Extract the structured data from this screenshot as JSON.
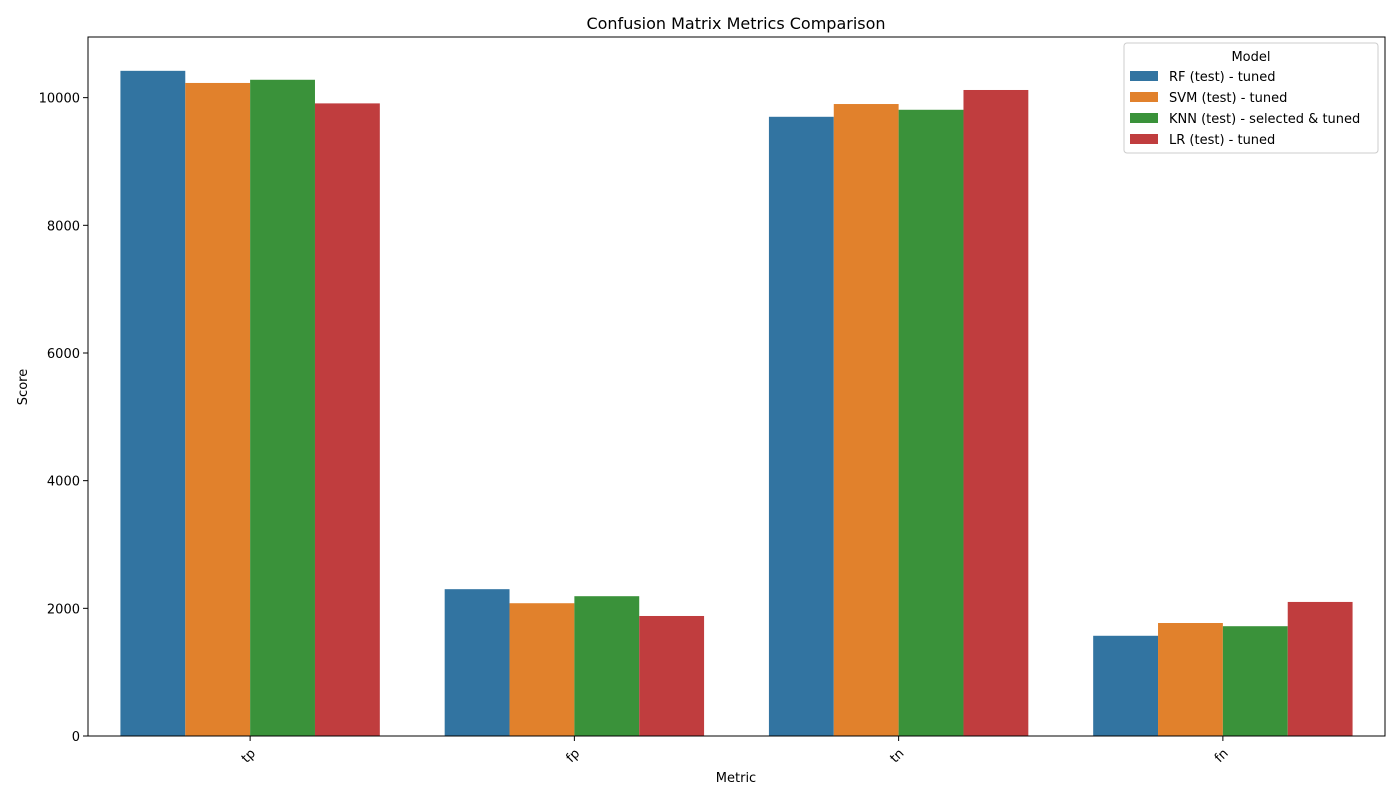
{
  "chart_data": {
    "type": "bar",
    "title": "Confusion Matrix Metrics Comparison",
    "xlabel": "Metric",
    "ylabel": "Score",
    "categories": [
      "tp",
      "fp",
      "tn",
      "fn"
    ],
    "ylim": [
      0,
      10950
    ],
    "yticks": [
      0,
      2000,
      4000,
      6000,
      8000,
      10000
    ],
    "y_tick_labels": [
      "0",
      "2000",
      "4000",
      "6000",
      "8000",
      "10000"
    ],
    "x_tick_rotation": "45 degrees",
    "legend": {
      "title": "Model",
      "placement": "top-right"
    },
    "grid": false,
    "series": [
      {
        "name": "RF (test) - tuned",
        "color": "#3274a1",
        "values": [
          10420,
          2300,
          9700,
          1570
        ]
      },
      {
        "name": "SVM (test) - tuned",
        "color": "#e1812c",
        "values": [
          10230,
          2080,
          9900,
          1770
        ]
      },
      {
        "name": "KNN (test) - selected & tuned",
        "color": "#3a923a",
        "values": [
          10280,
          2190,
          9810,
          1720
        ]
      },
      {
        "name": "LR (test) - tuned",
        "color": "#c03d3e",
        "values": [
          9910,
          1880,
          10120,
          2100
        ]
      }
    ]
  }
}
